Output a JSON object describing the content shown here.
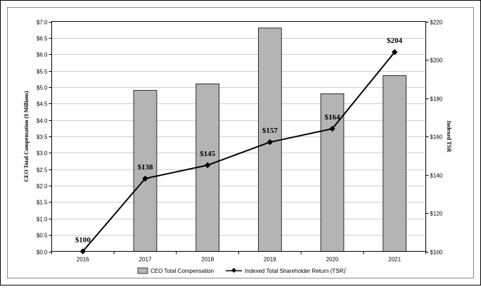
{
  "chart_data": {
    "type": "bar",
    "categories": [
      "2016",
      "2017",
      "2018",
      "2019",
      "2020",
      "2021"
    ],
    "series": [
      {
        "name": "CEO Total Compensation",
        "kind": "bar",
        "axis": "left",
        "color": "#b4b4b4",
        "values": [
          0,
          4.9,
          5.1,
          6.8,
          4.8,
          5.35
        ]
      },
      {
        "name": "Indexed Total Shareholder Return (TSR)",
        "legend_suffix": "¹",
        "kind": "line",
        "axis": "right",
        "color": "#000000",
        "values": [
          100,
          138,
          145,
          157,
          164,
          204
        ],
        "data_labels": [
          "$100",
          "$138",
          "$145",
          "$157",
          "$164",
          "$204"
        ]
      }
    ],
    "y_left": {
      "label": "CEO Total Compensation ($ Millions)",
      "ylim": [
        0,
        7
      ],
      "ticks": [
        0,
        0.5,
        1,
        1.5,
        2,
        2.5,
        3,
        3.5,
        4,
        4.5,
        5,
        5.5,
        6,
        6.5,
        7
      ],
      "tick_labels": [
        "$0.0",
        "$0.5",
        "$1.0",
        "$1.5",
        "$2.0",
        "$2.5",
        "$3.0",
        "$3.5",
        "$4.0",
        "$4.5",
        "$5.0",
        "$5.5",
        "$6.0",
        "$6.5",
        "$7.0"
      ]
    },
    "y_right": {
      "label": "Indexed TSR",
      "ylim": [
        100,
        220
      ],
      "ticks": [
        100,
        120,
        140,
        160,
        180,
        200,
        220
      ],
      "tick_labels": [
        "$100",
        "$120",
        "$140",
        "$160",
        "$180",
        "$200",
        "$220"
      ]
    },
    "grid": "horizontal",
    "legend_position": "bottom"
  }
}
